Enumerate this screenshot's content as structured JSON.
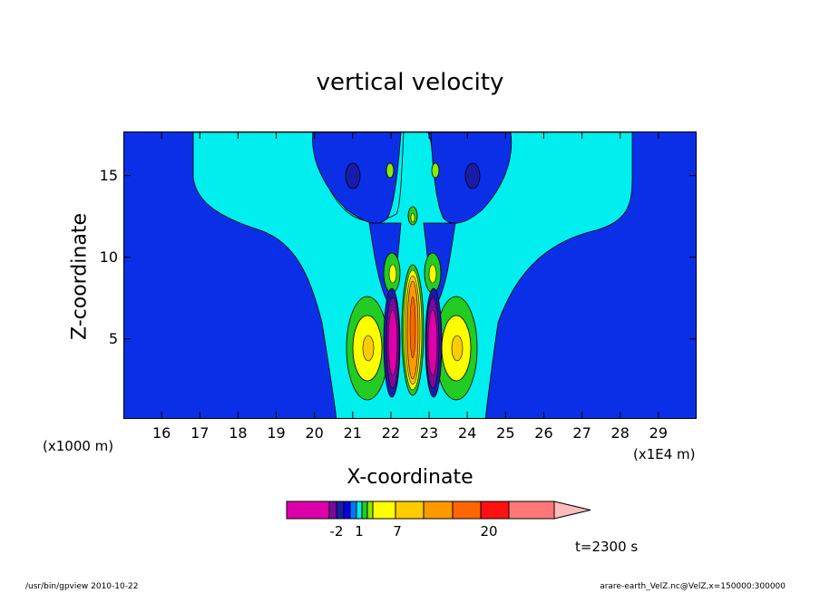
{
  "chart_data": {
    "type": "heatmap",
    "title": "vertical velocity",
    "xlabel": "X-coordinate",
    "ylabel": "Z-coordinate",
    "x_unit_left": "(x1000 m)",
    "x_unit_right": "(x1E4 m)",
    "x_ticks": [
      "16",
      "17",
      "18",
      "19",
      "20",
      "21",
      "22",
      "23",
      "24",
      "25",
      "26",
      "27",
      "28",
      "29"
    ],
    "x_tick_values": [
      16,
      17,
      18,
      19,
      20,
      21,
      22,
      23,
      24,
      25,
      26,
      27,
      28,
      29
    ],
    "xlim": [
      15.0,
      30.0
    ],
    "y_ticks": [
      "5",
      "10",
      "15"
    ],
    "y_tick_values": [
      5,
      10,
      15
    ],
    "ylim": [
      0.1,
      17.7
    ],
    "colorbar": {
      "labels": [
        "-2",
        "1",
        "7",
        "20"
      ],
      "colors": [
        "#dd00aa",
        "#7a0a9c",
        "#1a1aa8",
        "#0000ee",
        "#0077ff",
        "#00eeee",
        "#22cc22",
        "#88ee00",
        "#ffff00",
        "#ffcc00",
        "#ff9900",
        "#ff6600",
        "#ff1111",
        "#ff7777",
        "#ffbbbb"
      ]
    },
    "time_label": "t=2300 s",
    "background_color": "#0a2fe6",
    "features": [
      {
        "name": "cyan-plume",
        "color": "#00eeee"
      },
      {
        "name": "green-lobe-left",
        "x": 21.4,
        "z": 4.8,
        "color": "#22cc22"
      },
      {
        "name": "yellow-lobe-left",
        "x": 21.4,
        "z": 4.8,
        "color": "#ffff00"
      },
      {
        "name": "green-lobe-right",
        "x": 23.8,
        "z": 4.8,
        "color": "#22cc22"
      },
      {
        "name": "yellow-lobe-right",
        "x": 23.8,
        "z": 4.8,
        "color": "#ffff00"
      },
      {
        "name": "magenta-lobe-left",
        "x": 22.0,
        "z": 5.0,
        "color": "#dd00aa"
      },
      {
        "name": "magenta-lobe-right",
        "x": 23.2,
        "z": 5.0,
        "color": "#dd00aa"
      },
      {
        "name": "orange-core",
        "x": 22.6,
        "z": 5.5,
        "color": "#ff9900"
      }
    ]
  },
  "footer": {
    "left": "/usr/bin/gpview   2010-10-22",
    "right": "arare-earth_VelZ.nc@VelZ,x=150000:300000"
  }
}
